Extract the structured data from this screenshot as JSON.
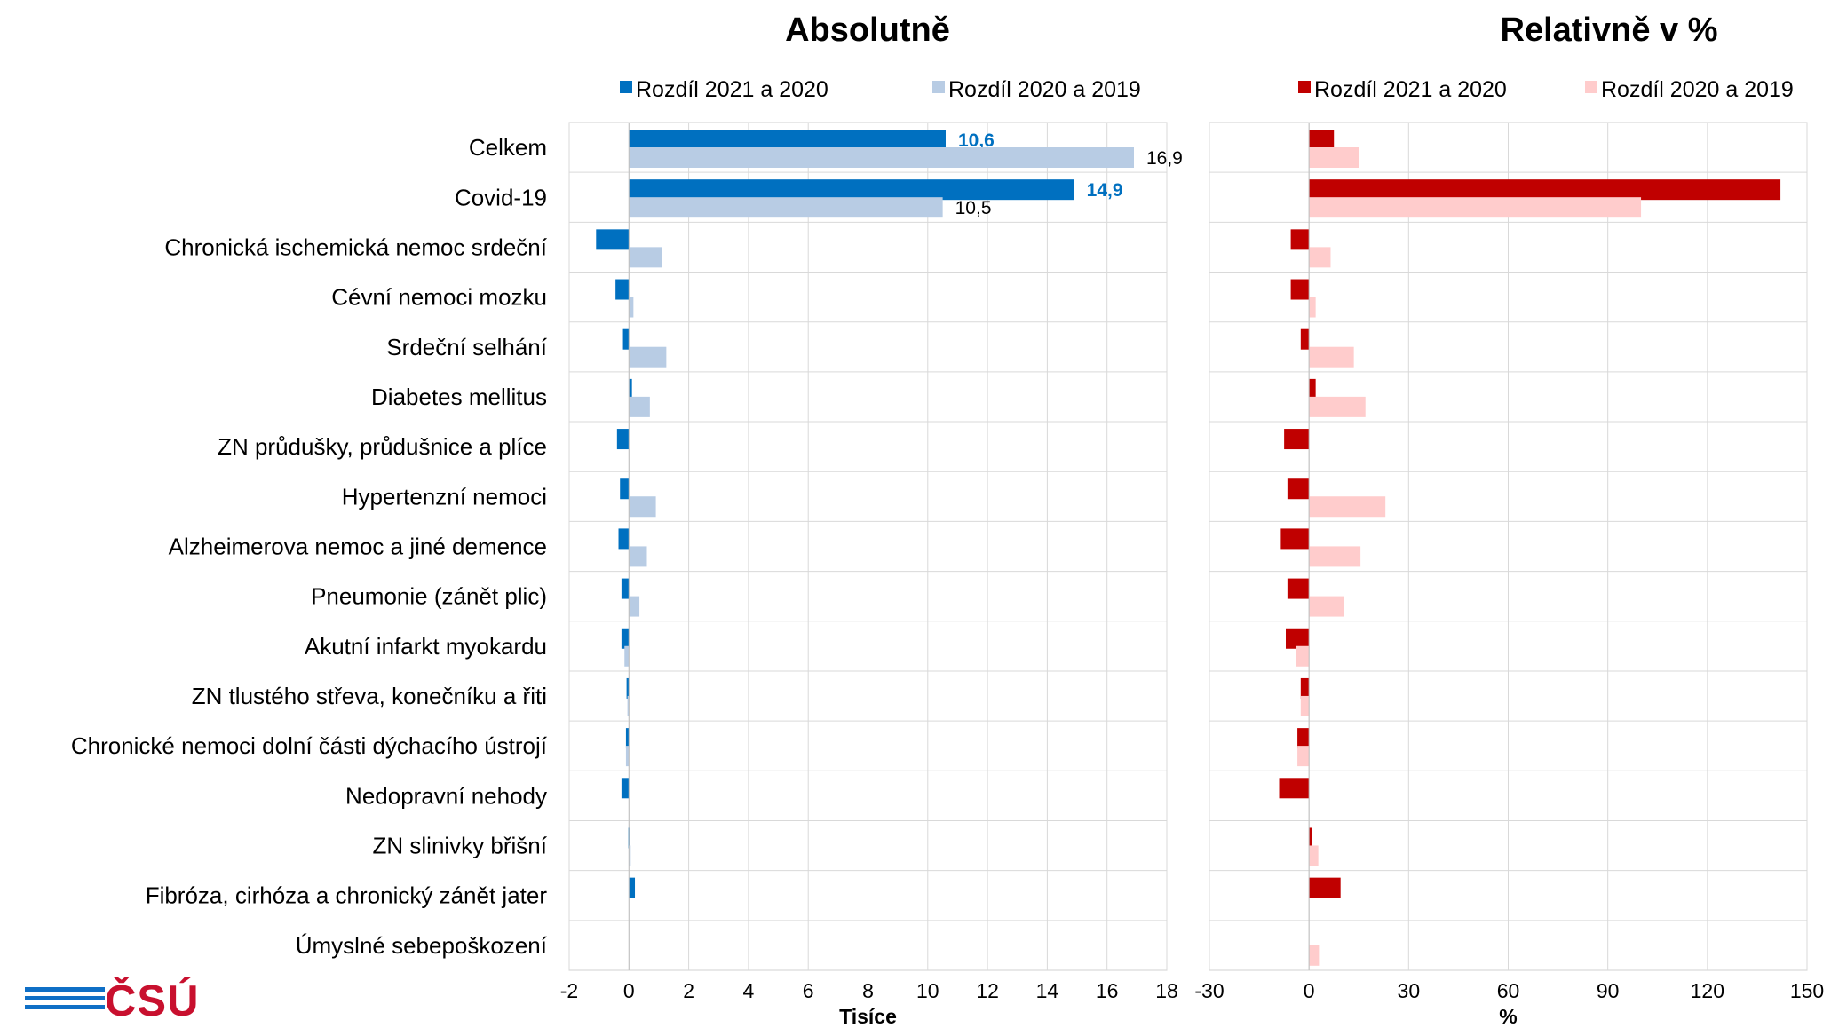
{
  "categories": [
    "Celkem",
    "Covid-19",
    "Chronická ischemická nemoc srdeční",
    "Cévní nemoci mozku",
    "Srdeční selhání",
    "Diabetes mellitus",
    "ZN průdušky, průdušnice a plíce",
    "Hypertenzní nemoci",
    "Alzheimerova nemoc a jiné demence",
    "Pneumonie (zánět plic)",
    "Akutní infarkt myokardu",
    "ZN tlustého střeva, konečníku a řiti",
    "Chronické nemoci dolní části dýchacího ústrojí",
    "Nedopravní nehody",
    "ZN slinivky břišní",
    "Fibróza, cirhóza a chronický zánět jater",
    "Úmyslné sebepoškození"
  ],
  "chart_data": [
    {
      "type": "bar",
      "orientation": "horizontal",
      "title": "Absolutně",
      "xlabel": "Tisíce",
      "xlim": [
        -2,
        18
      ],
      "xticks": [
        -2,
        0,
        2,
        4,
        6,
        8,
        10,
        12,
        14,
        16,
        18
      ],
      "grid": true,
      "legend_position": "top",
      "series": [
        {
          "name": "Rozdíl 2021 a 2020",
          "color": "#0070c0",
          "values": [
            10.6,
            14.9,
            -1.1,
            -0.45,
            -0.2,
            0.1,
            -0.4,
            -0.3,
            -0.35,
            -0.25,
            -0.25,
            -0.08,
            -0.1,
            -0.25,
            -0.02,
            0.2,
            0.0
          ],
          "labels": {
            "0": "10,6",
            "1": "14,9"
          }
        },
        {
          "name": "Rozdíl 2020 a 2019",
          "color": "#b8cce4",
          "values": [
            16.9,
            10.5,
            1.1,
            0.15,
            1.25,
            0.7,
            0.0,
            0.9,
            0.6,
            0.35,
            -0.15,
            -0.05,
            -0.1,
            0.0,
            0.05,
            0.0,
            0.0
          ],
          "labels": {
            "0": "16,9",
            "1": "10,5"
          }
        }
      ]
    },
    {
      "type": "bar",
      "orientation": "horizontal",
      "title": "Relativně v %",
      "xlabel": "%",
      "xlim": [
        -30,
        150
      ],
      "xticks": [
        -30,
        0,
        30,
        60,
        90,
        120,
        150
      ],
      "grid": true,
      "legend_position": "top",
      "series": [
        {
          "name": "Rozdíl 2021 a 2020",
          "color": "#c00000",
          "values": [
            7.5,
            142,
            -5.5,
            -5.5,
            -2.5,
            2,
            -7.5,
            -6.5,
            -8.5,
            -6.5,
            -7,
            -2.5,
            -3.5,
            -9,
            0.8,
            9.5,
            0.0
          ],
          "labels": {}
        },
        {
          "name": "Rozdíl 2020 a 2019",
          "color": "#ffcccc",
          "values": [
            15,
            100,
            6.5,
            2,
            13.5,
            17,
            0.0,
            23,
            15.5,
            10.5,
            -4,
            -2.5,
            -3.5,
            0.0,
            2.8,
            0.0,
            3.0
          ],
          "labels": {}
        }
      ]
    }
  ],
  "logo": {
    "text": "ČSÚ"
  }
}
